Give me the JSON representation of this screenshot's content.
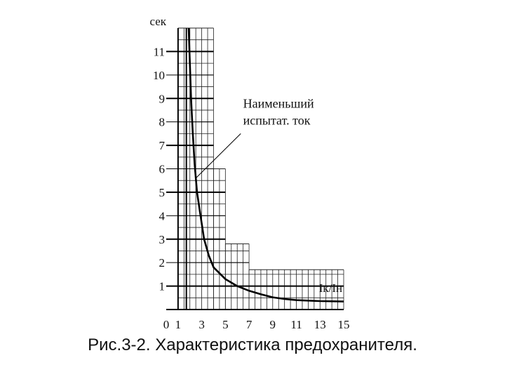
{
  "chart_data": {
    "type": "line",
    "ylabel": "сек",
    "xlabel": "Iк/Iн",
    "x_ticks": [
      "0",
      "1",
      "3",
      "5",
      "7",
      "9",
      "11",
      "13",
      "15"
    ],
    "y_ticks": [
      "1",
      "2",
      "3",
      "4",
      "5",
      "6",
      "7",
      "8",
      "9",
      "10",
      "11"
    ],
    "xlim": [
      0,
      15
    ],
    "ylim": [
      0,
      12
    ],
    "grid": true,
    "annotation": {
      "text": [
        "Наименьший",
        "испытат. ток"
      ],
      "points_to": [
        2.5,
        5.6
      ]
    },
    "series": [
      {
        "values": [
          [
            1.9,
            12.0
          ],
          [
            2.0,
            10.5
          ],
          [
            2.1,
            9.0
          ],
          [
            2.25,
            7.5
          ],
          [
            2.4,
            6.2
          ],
          [
            2.6,
            5.0
          ],
          [
            2.9,
            4.0
          ],
          [
            3.2,
            3.0
          ],
          [
            3.6,
            2.3
          ],
          [
            4.0,
            1.8
          ],
          [
            5.0,
            1.3
          ],
          [
            6.0,
            1.0
          ],
          [
            7.0,
            0.8
          ],
          [
            8.0,
            0.65
          ],
          [
            9.0,
            0.52
          ],
          [
            10.0,
            0.45
          ],
          [
            11.0,
            0.4
          ],
          [
            12.0,
            0.38
          ],
          [
            13.0,
            0.36
          ],
          [
            15.0,
            0.34
          ]
        ]
      }
    ]
  },
  "caption": "Рис.3-2. Характеристика предохранителя."
}
